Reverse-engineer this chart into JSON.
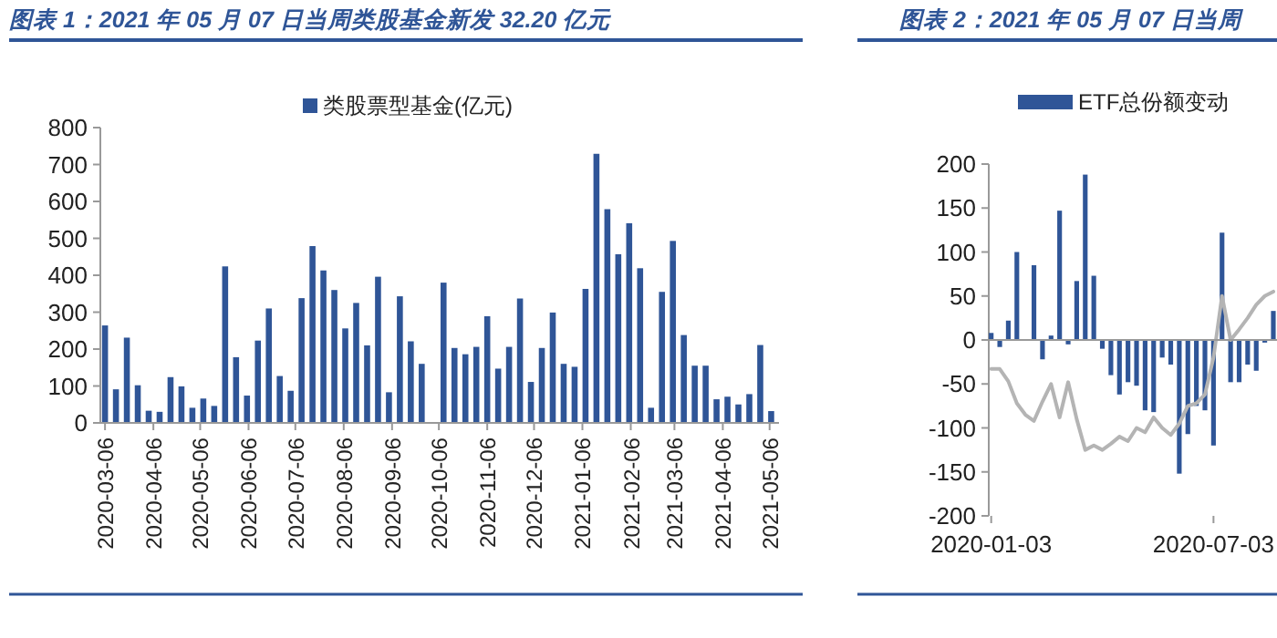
{
  "chart_data": [
    {
      "type": "bar",
      "title": "图表 1：2021 年 05 月 07 日当周类股基金新发 32.20 亿元",
      "legend": "top",
      "x": [
        "2020-03-06",
        "2020-03-13",
        "2020-03-20",
        "2020-03-27",
        "2020-04-03",
        "2020-04-10",
        "2020-04-17",
        "2020-04-24",
        "2020-05-01",
        "2020-05-08",
        "2020-05-15",
        "2020-05-22",
        "2020-05-29",
        "2020-06-05",
        "2020-06-12",
        "2020-06-19",
        "2020-06-26",
        "2020-07-03",
        "2020-07-10",
        "2020-07-17",
        "2020-07-24",
        "2020-07-31",
        "2020-08-07",
        "2020-08-14",
        "2020-08-21",
        "2020-08-28",
        "2020-09-04",
        "2020-09-11",
        "2020-09-18",
        "2020-09-25",
        "2020-10-02",
        "2020-10-09",
        "2020-10-16",
        "2020-10-23",
        "2020-10-30",
        "2020-11-06",
        "2020-11-13",
        "2020-11-20",
        "2020-11-27",
        "2020-12-04",
        "2020-12-11",
        "2020-12-18",
        "2020-12-25",
        "2021-01-01",
        "2021-01-08",
        "2021-01-15",
        "2021-01-22",
        "2021-01-29",
        "2021-02-05",
        "2021-02-12",
        "2021-02-19",
        "2021-02-26",
        "2021-03-05",
        "2021-03-12",
        "2021-03-19",
        "2021-03-26",
        "2021-04-02",
        "2021-04-09",
        "2021-04-16",
        "2021-04-23",
        "2021-04-30",
        "2021-05-07"
      ],
      "xlim": [
        "2020-03-03",
        "2021-05-12"
      ],
      "xticks": [
        "2020-03-06",
        "2020-04-06",
        "2020-05-06",
        "2020-06-06",
        "2020-07-06",
        "2020-08-06",
        "2020-09-06",
        "2020-10-06",
        "2020-11-06",
        "2020-12-06",
        "2021-01-06",
        "2021-02-06",
        "2021-03-06",
        "2021-04-06",
        "2021-05-06"
      ],
      "ylim": [
        0,
        800
      ],
      "yticks": [
        0,
        100,
        200,
        300,
        400,
        500,
        600,
        700,
        800
      ],
      "series": [
        {
          "name": "类股票型基金(亿元)",
          "color": "#2f5597",
          "values": [
            264,
            91,
            231,
            102,
            33,
            30,
            124,
            99,
            41,
            66,
            46,
            424,
            178,
            74,
            223,
            310,
            127,
            87,
            338,
            479,
            413,
            360,
            256,
            325,
            210,
            396,
            83,
            343,
            221,
            160,
            0,
            380,
            203,
            186,
            206,
            289,
            147,
            206,
            337,
            111,
            203,
            299,
            160,
            152,
            363,
            729,
            579,
            457,
            541,
            419,
            41,
            355,
            493,
            238,
            155,
            155,
            64,
            71,
            50,
            78,
            211,
            32
          ]
        }
      ]
    },
    {
      "type": "bar",
      "title": "图表 2：2021 年 05 月 07 日当周",
      "legend": "top",
      "x": [
        "2020-01-03",
        "2020-01-10",
        "2020-01-17",
        "2020-01-24",
        "2020-01-31",
        "2020-02-07",
        "2020-02-14",
        "2020-02-21",
        "2020-02-28",
        "2020-03-06",
        "2020-03-13",
        "2020-03-20",
        "2020-03-27",
        "2020-04-03",
        "2020-04-10",
        "2020-04-17",
        "2020-04-24",
        "2020-05-01",
        "2020-05-08",
        "2020-05-15",
        "2020-05-22",
        "2020-05-29",
        "2020-06-05",
        "2020-06-12",
        "2020-06-19",
        "2020-06-26",
        "2020-07-03",
        "2020-07-10",
        "2020-07-17",
        "2020-07-24",
        "2020-07-31",
        "2020-08-07",
        "2020-08-14",
        "2020-08-21"
      ],
      "xlim": [
        "2020-01-01",
        "2020-08-24"
      ],
      "xticks": [
        "2020-01-03",
        "2020-07-03"
      ],
      "ylim": [
        -200,
        200
      ],
      "yticks": [
        -200,
        -150,
        -100,
        -50,
        0,
        50,
        100,
        150,
        200
      ],
      "series": [
        {
          "name": "ETF总份额变动",
          "color": "#2f5597",
          "values": [
            8,
            -8,
            22,
            100,
            0,
            85,
            -22,
            5,
            147,
            -5,
            67,
            188,
            73,
            -10,
            -40,
            -62,
            -48,
            -52,
            -80,
            -82,
            -20,
            -28,
            -152,
            -107,
            -75,
            -80,
            -120,
            122,
            -48,
            -48,
            -28,
            -35,
            -3,
            33
          ]
        },
        {
          "type": "line",
          "color": "#b4b4b4",
          "values": [
            -33,
            -33,
            -47,
            -72,
            -85,
            -92,
            -70,
            -50,
            -88,
            -48,
            -90,
            -125,
            -120,
            -125,
            -118,
            -110,
            -115,
            -100,
            -105,
            -88,
            -100,
            -108,
            -95,
            -75,
            -72,
            -62,
            -20,
            50,
            0,
            12,
            25,
            40,
            50,
            55
          ]
        }
      ]
    }
  ]
}
